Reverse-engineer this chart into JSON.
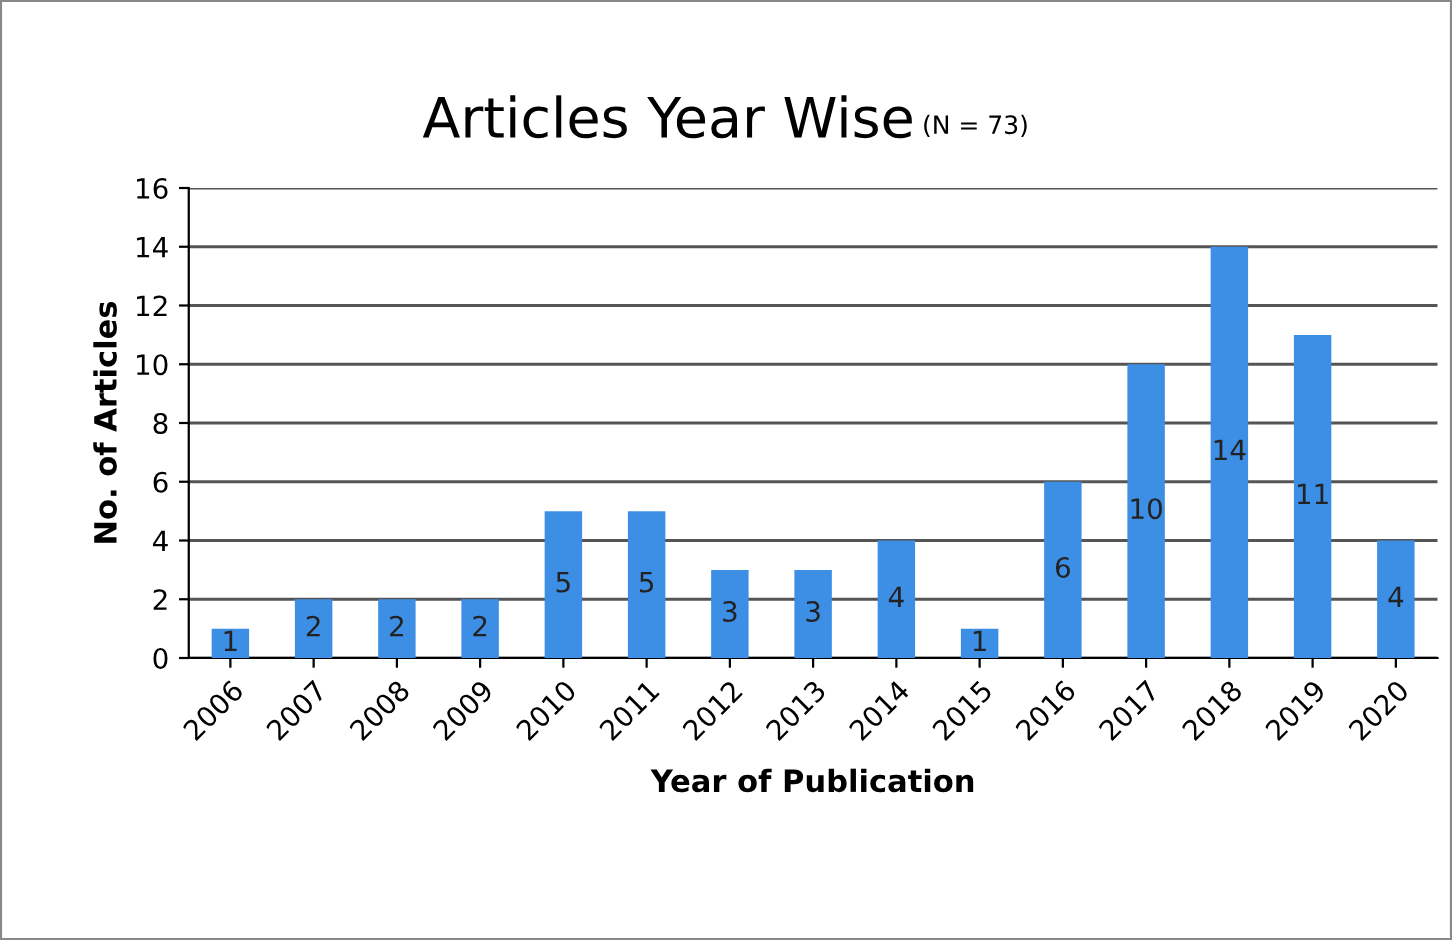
{
  "chart_data": {
    "type": "bar",
    "title": "Articles Year Wise",
    "subtitle": "(N = 73)",
    "xlabel": "Year of Publication",
    "ylabel": "No. of Articles",
    "categories": [
      "2006",
      "2007",
      "2008",
      "2009",
      "2010",
      "2011",
      "2012",
      "2013",
      "2014",
      "2015",
      "2016",
      "2017",
      "2018",
      "2019",
      "2020"
    ],
    "values": [
      1,
      2,
      2,
      2,
      5,
      5,
      3,
      3,
      4,
      1,
      6,
      10,
      14,
      11,
      4
    ],
    "color": "#3d8fe6",
    "ylim": [
      0,
      16
    ],
    "yticks": [
      0,
      2,
      4,
      6,
      8,
      10,
      12,
      14,
      16
    ],
    "grid": "y",
    "data_labels": true
  }
}
